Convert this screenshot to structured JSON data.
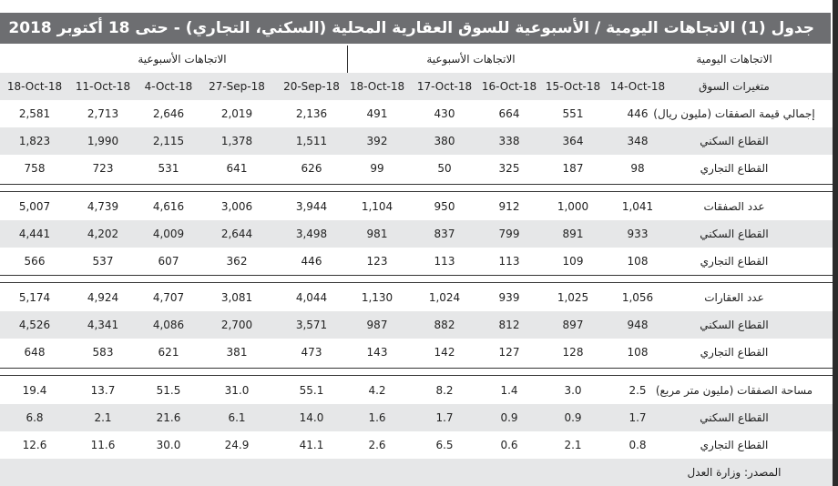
{
  "title": "جدول (1) الاتجاهات اليومية / الأسبوعية  للسوق العقارية المحلية (السكني، التجاري) - حتى 18 أكتوبر 2018",
  "header": {
    "daily_label": "الاتجاهات اليومية",
    "group_daily": "الاتجاهات الأسبوعية",
    "group_weekly": "الاتجاهات الأسبوعية"
  },
  "columns_label": "متغيرات السوق",
  "columns": [
    "14-Oct-18",
    "15-Oct-18",
    "16-Oct-18",
    "17-Oct-18",
    "18-Oct-18",
    "20-Sep-18",
    "27-Sep-18",
    "4-Oct-18",
    "11-Oct-18",
    "18-Oct-18"
  ],
  "groups": [
    {
      "rows": [
        {
          "label": "إجمالي قيمة الصفقات (مليون ريال)",
          "values": [
            "446",
            "551",
            "664",
            "430",
            "491",
            "2,136",
            "2,019",
            "2,646",
            "2,713",
            "2,581"
          ]
        },
        {
          "label": "القطاع السكني",
          "values": [
            "348",
            "364",
            "338",
            "380",
            "392",
            "1,511",
            "1,378",
            "2,115",
            "1,990",
            "1,823"
          ]
        },
        {
          "label": "القطاع التجاري",
          "values": [
            "98",
            "187",
            "325",
            "50",
            "99",
            "626",
            "641",
            "531",
            "723",
            "758"
          ]
        }
      ]
    },
    {
      "rows": [
        {
          "label": "عدد الصفقات",
          "values": [
            "1,041",
            "1,000",
            "912",
            "950",
            "1,104",
            "3,944",
            "3,006",
            "4,616",
            "4,739",
            "5,007"
          ]
        },
        {
          "label": "القطاع السكني",
          "values": [
            "933",
            "891",
            "799",
            "837",
            "981",
            "3,498",
            "2,644",
            "4,009",
            "4,202",
            "4,441"
          ]
        },
        {
          "label": "القطاع التجاري",
          "values": [
            "108",
            "109",
            "113",
            "113",
            "123",
            "446",
            "362",
            "607",
            "537",
            "566"
          ]
        }
      ]
    },
    {
      "rows": [
        {
          "label": "عدد العقارات",
          "values": [
            "1,056",
            "1,025",
            "939",
            "1,024",
            "1,130",
            "4,044",
            "3,081",
            "4,707",
            "4,924",
            "5,174"
          ]
        },
        {
          "label": "القطاع السكني",
          "values": [
            "948",
            "897",
            "812",
            "882",
            "987",
            "3,571",
            "2,700",
            "4,086",
            "4,341",
            "4,526"
          ]
        },
        {
          "label": "القطاع التجاري",
          "values": [
            "108",
            "128",
            "127",
            "142",
            "143",
            "473",
            "381",
            "621",
            "583",
            "648"
          ]
        }
      ]
    },
    {
      "rows": [
        {
          "label": "مساحة الصفقات (مليون متر مربع)",
          "values": [
            "2.5",
            "3.0",
            "1.4",
            "8.2",
            "4.2",
            "55.1",
            "31.0",
            "51.5",
            "13.7",
            "19.4"
          ]
        },
        {
          "label": "القطاع السكني",
          "values": [
            "1.7",
            "0.9",
            "0.9",
            "1.7",
            "1.6",
            "14.0",
            "6.1",
            "21.6",
            "2.1",
            "6.8"
          ]
        },
        {
          "label": "القطاع التجاري",
          "values": [
            "0.8",
            "2.1",
            "0.6",
            "6.5",
            "2.6",
            "41.1",
            "24.9",
            "30.0",
            "11.6",
            "12.6"
          ]
        }
      ]
    }
  ],
  "source": "المصدر: وزارة العدل"
}
